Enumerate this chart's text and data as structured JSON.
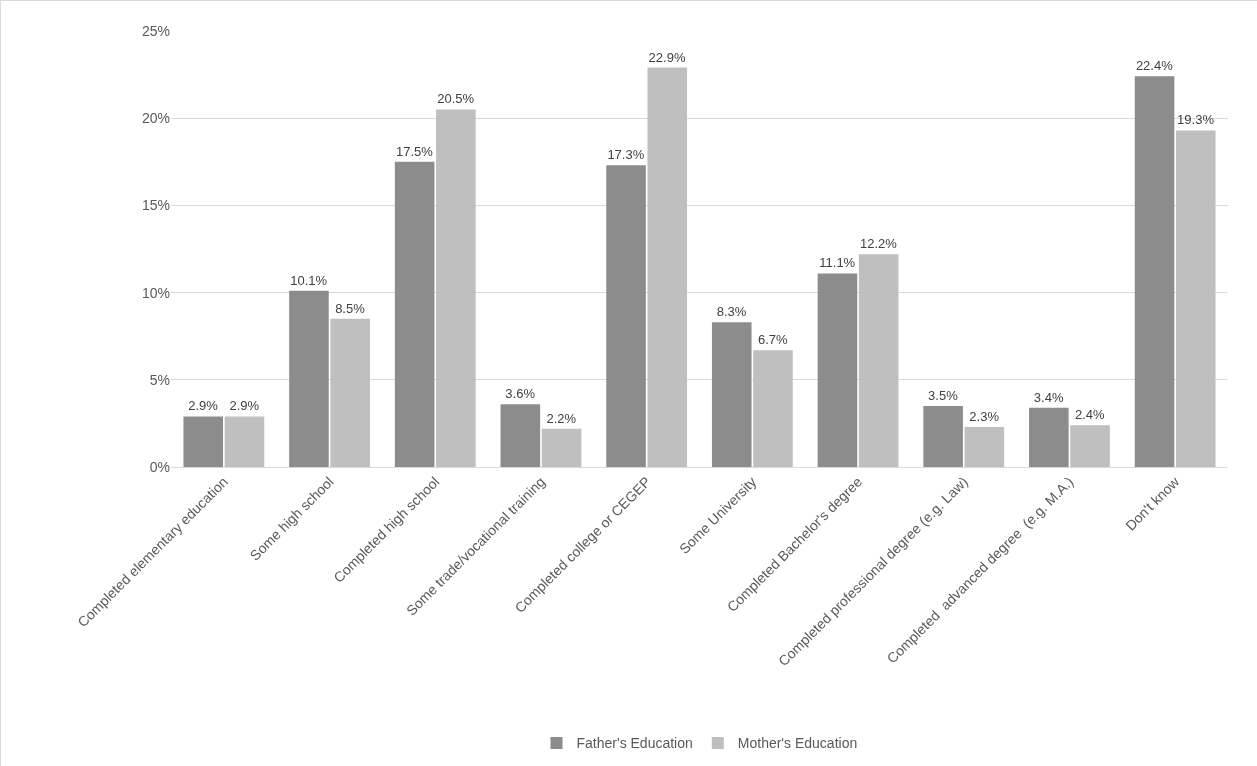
{
  "chart_data": {
    "type": "bar",
    "categories": [
      "Completed elementary education",
      "Some high school",
      "Completed high school",
      "Some trade/vocational training",
      "Completed college or CEGEP",
      "Some University",
      "Completed Bachelor's degree",
      "Completed professional degree (e.g. Law)",
      "Completed  advanced degree  (e.g. M.A.)",
      "Don't know"
    ],
    "series": [
      {
        "name": "Father's Education",
        "color": "#8c8c8c",
        "values": [
          2.9,
          10.1,
          17.5,
          3.6,
          17.3,
          8.3,
          11.1,
          3.5,
          3.4,
          22.4
        ],
        "value_labels": [
          "2.9%",
          "10.1%",
          "17.5%",
          "3.6%",
          "17.3%",
          "8.3%",
          "11.1%",
          "3.5%",
          "3.4%",
          "22.4%"
        ]
      },
      {
        "name": "Mother's Education",
        "color": "#bfbfbf",
        "values": [
          2.9,
          8.5,
          20.5,
          2.2,
          22.9,
          6.7,
          12.2,
          2.3,
          2.4,
          19.3
        ],
        "value_labels": [
          "2.9%",
          "8.5%",
          "20.5%",
          "2.2%",
          "22.9%",
          "6.7%",
          "12.2%",
          "2.3%",
          "2.4%",
          "19.3%"
        ]
      }
    ],
    "ylim": [
      0,
      25
    ],
    "yticks": [
      {
        "value": 0,
        "label": "0%"
      },
      {
        "value": 5,
        "label": "5%"
      },
      {
        "value": 10,
        "label": "10%"
      },
      {
        "value": 15,
        "label": "15%"
      },
      {
        "value": 20,
        "label": "20%"
      },
      {
        "value": 25,
        "label": "25%"
      }
    ],
    "grid": "y",
    "legend": "bottom"
  }
}
